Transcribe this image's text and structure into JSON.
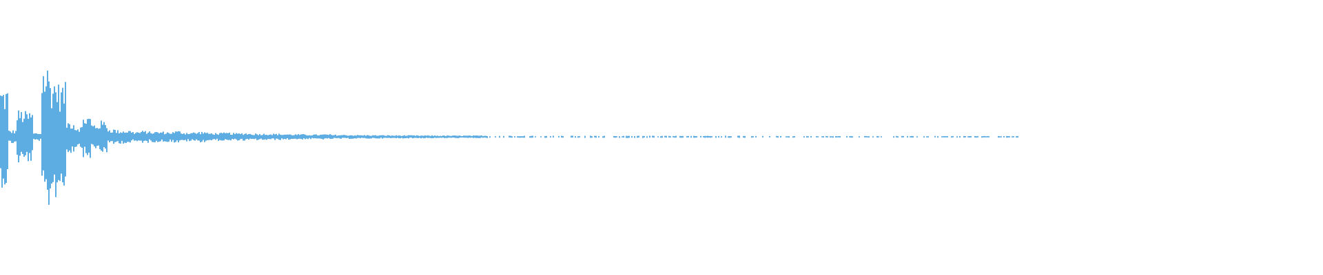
{
  "waveform": {
    "color": "#5dade2",
    "background": "#ffffff",
    "envelope": [
      0.37,
      0.05,
      0.2,
      0.19,
      0.03,
      0.54,
      0.45,
      0.4,
      0.12,
      0.08,
      0.16,
      0.1,
      0.12,
      0.06,
      0.05,
      0.05,
      0.04,
      0.045,
      0.04,
      0.04,
      0.038,
      0.045,
      0.035,
      0.035,
      0.04,
      0.03,
      0.03,
      0.032,
      0.028,
      0.03,
      0.026,
      0.025,
      0.025,
      0.024,
      0.022,
      0.02,
      0.02,
      0.018,
      0.018,
      0.02,
      0.016,
      0.016,
      0.015,
      0.014,
      0.014,
      0.013,
      0.013,
      0.012,
      0.012,
      0.012,
      0.011,
      0.011,
      0.011,
      0.01,
      0.01,
      0.01,
      0.01,
      0.01,
      0.01,
      0.008,
      0.008,
      0.008,
      0.008,
      0.008,
      0.008,
      0.008,
      0.008,
      0.008,
      0.008,
      0.008,
      0.008,
      0.008,
      0.008,
      0.008,
      0.008,
      0.008,
      0.008,
      0.008,
      0.008,
      0.008,
      0.008,
      0.008,
      0.008,
      0.008,
      0.008,
      0.008,
      0.008,
      0.008,
      0.008,
      0.008,
      0.008,
      0.006,
      0.006,
      0.006,
      0.006,
      0.006,
      0.006,
      0.006,
      0.006,
      0.006,
      0.006,
      0.006,
      0.006,
      0.006,
      0.006,
      0.006,
      0.006,
      0.006,
      0.006,
      0.006,
      0.006,
      0.006,
      0.006,
      0.006,
      0.006,
      0.006,
      0.006,
      0.006,
      0.006,
      0.006,
      0.006,
      0.006,
      0.006,
      0.006,
      0,
      0,
      0,
      0,
      0,
      0,
      0,
      0,
      0,
      0,
      0,
      0,
      0,
      0,
      0,
      0,
      0,
      0,
      0,
      0,
      0,
      0,
      0,
      0,
      0,
      0,
      0,
      0,
      0,
      0,
      0,
      0,
      0,
      0,
      0,
      0
    ]
  }
}
